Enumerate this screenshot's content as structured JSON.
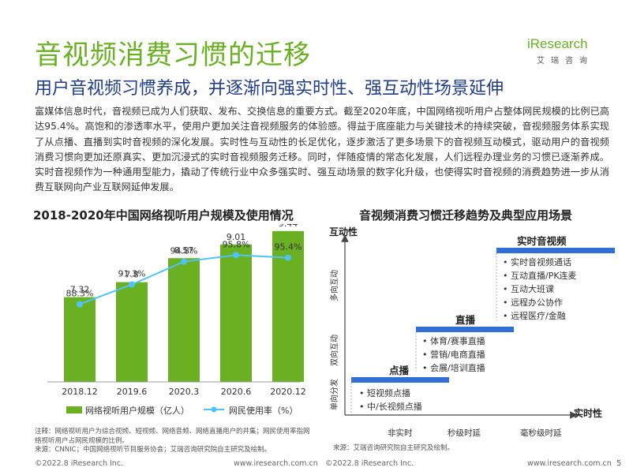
{
  "header": {
    "title": "音视频消费习惯的迁移",
    "subtitle": "用户音视频习惯养成，并逐渐向强实时性、强互动性场景延伸"
  },
  "logo": {
    "brand": "iResearch",
    "sub": "艾瑞咨询",
    "color": "#6ab023"
  },
  "body_text": "富媒体信息时代，音视频已成为人们获取、发布、交换信息的重要方式。截至2020年底，中国网络视听用户占整体网民规模的比例已高达95.4%。高饱和的渗透率水平，使用户更加关注音视频服务的体验感。得益于底座能力与关键技术的持续突破，音视频服务体系实现了从点播、直播到实时音视频的深化发展。实时性与互动性的长足优化，逐步激活了更多场景下的音视频互动模式，驱动用户的音视频消费习惯向更加还原真实、更加沉浸式的实时音视频服务迁移。同时，伴随疫情的常态化发展，人们远程办理业务的习惯已逐渐养成。实时音视频作为一种通用型能力，撬动了传统行业中众多强实时、强互动场景的数字化升级，也使得实时音视频的消费趋势进一步从消费互联网向产业互联网延伸发展。",
  "left_section": {
    "title": "2018-2020年中国网络视听用户规模及使用情况"
  },
  "chart_data": {
    "type": "bar",
    "categories": [
      "2018.12",
      "2019.6",
      "2020.3",
      "2020.6",
      "2020.12"
    ],
    "series": [
      {
        "name": "网络视听用户规模（亿人）",
        "type": "bar",
        "values": [
          7.32,
          7.8,
          8.57,
          9.01,
          9.44
        ],
        "labels": [
          "7.32",
          "7.8",
          "8.57",
          "9.01",
          "9.44"
        ],
        "color": "#6ab023"
      },
      {
        "name": "网民使用率（%）",
        "type": "line",
        "values": [
          88.3,
          91.3,
          94.8,
          95.8,
          95.4
        ],
        "labels": [
          "88.3%",
          "91.3%",
          "94.8%",
          "95.8%",
          "95.4%"
        ],
        "color": "#4fc3f7"
      }
    ]
  },
  "right_section": {
    "title": "音视频消费习惯迁移趋势及典型应用场景",
    "y_axis_label": "互动性",
    "x_axis_label": "实时性",
    "y_levels": [
      "单向分发",
      "双向互动",
      "多向互动"
    ],
    "x_levels": [
      "非实时",
      "秒级时延",
      "毫秒级时延"
    ],
    "tiers": [
      {
        "name": "点播",
        "items": [
          "短视频点播",
          "中/长视频点播"
        ]
      },
      {
        "name": "直播",
        "items": [
          "体育/赛事直播",
          "营销/电商直播",
          "会展/培训直播"
        ]
      },
      {
        "name": "实时音视频",
        "items": [
          "实时音视频通话",
          "互动直播/PK连麦",
          "互动大班课",
          "远程办公协作",
          "远程医疗/金融"
        ]
      }
    ],
    "source": "来源：艾瑞咨询研究院自主研究及绘制。"
  },
  "notes": {
    "note1": "注释：网络视听用户为综合视频、短视频、网络音频、网络直播用户的并集；网民使用率指网络视听用户占网民规模的比例。",
    "note2": "来源：CNNIC；中国网络视听节目服务协会；艾瑞咨询研究院自主研究及绘制。"
  },
  "footer": {
    "copyright_left": "©2022.8 iResearch Inc.",
    "url_left": "www.iresearch.com.cn",
    "copyright_right": "©2022.8 iResearch Inc.",
    "url_right": "www.iresearch.com.cn",
    "page_number": "5"
  },
  "colors": {
    "green": "#6ab023",
    "navy": "#1f3c88",
    "blue": "#2f6fd6",
    "line_blue": "#4fc3f7"
  }
}
